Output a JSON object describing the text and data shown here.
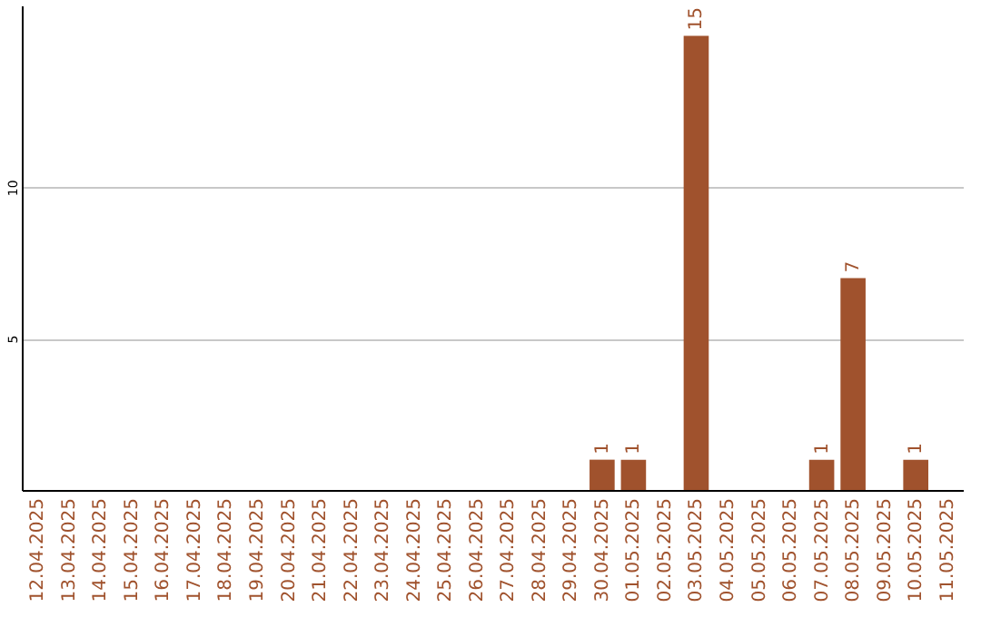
{
  "chart_data": {
    "type": "bar",
    "categories": [
      "12.04.2025",
      "13.04.2025",
      "14.04.2025",
      "15.04.2025",
      "16.04.2025",
      "17.04.2025",
      "18.04.2025",
      "19.04.2025",
      "20.04.2025",
      "21.04.2025",
      "22.04.2025",
      "23.04.2025",
      "24.04.2025",
      "25.04.2025",
      "26.04.2025",
      "27.04.2025",
      "28.04.2025",
      "29.04.2025",
      "30.04.2025",
      "01.05.2025",
      "02.05.2025",
      "03.05.2025",
      "04.05.2025",
      "05.05.2025",
      "06.05.2025",
      "07.05.2025",
      "08.05.2025",
      "09.05.2025",
      "10.05.2025",
      "11.05.2025"
    ],
    "values": [
      0,
      0,
      0,
      0,
      0,
      0,
      0,
      0,
      0,
      0,
      0,
      0,
      0,
      0,
      0,
      0,
      0,
      0,
      1,
      1,
      0,
      15,
      0,
      0,
      0,
      1,
      7,
      0,
      1,
      0
    ],
    "value_labels": [
      null,
      null,
      null,
      null,
      null,
      null,
      null,
      null,
      null,
      null,
      null,
      null,
      null,
      null,
      null,
      null,
      null,
      null,
      "1",
      "1",
      null,
      "15",
      null,
      null,
      null,
      "1",
      "7",
      null,
      "1",
      null
    ],
    "color": "#a0522d",
    "ylim": [
      0,
      16
    ],
    "yticks": [
      5,
      10
    ],
    "grid": "y"
  }
}
